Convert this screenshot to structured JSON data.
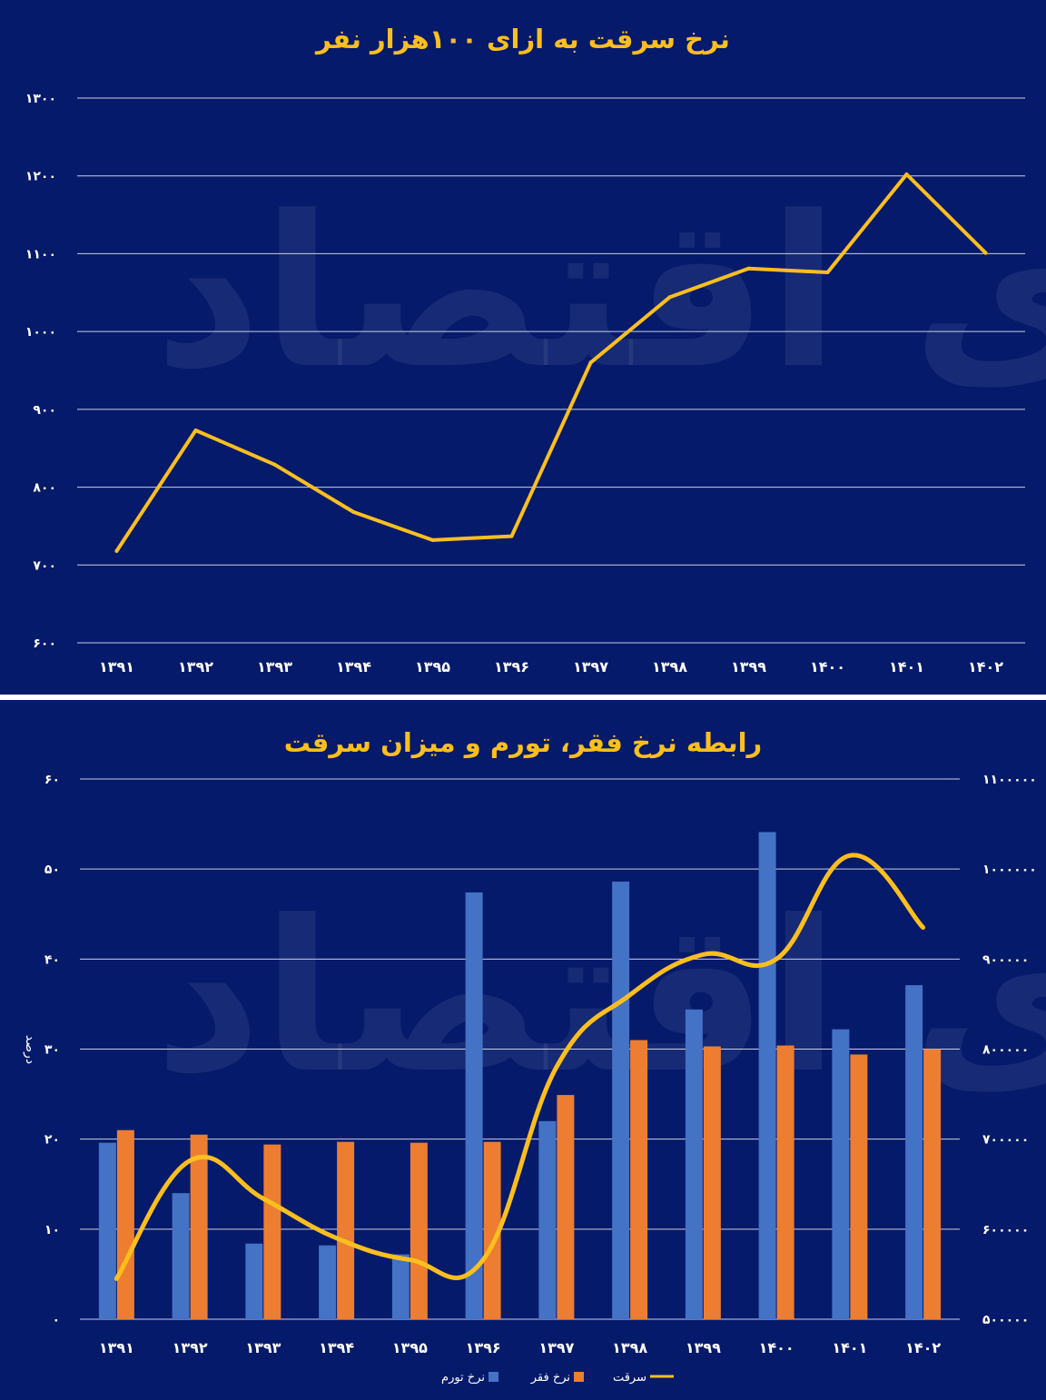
{
  "colors": {
    "background": "#061a6b",
    "grid": "#c9cfe6",
    "text": "#ffffff",
    "accent": "#fdbf1e",
    "inflation_bar": "#4472c4",
    "poverty_bar": "#ed7d31",
    "theft_line": "#fdbf1e"
  },
  "watermark": "دنیای اقتصاد",
  "chart_data": [
    {
      "type": "line",
      "title": "نرخ سرقت به ازای ۱۰۰هزار نفر",
      "categories": [
        "۱۳۹۱",
        "۱۳۹۲",
        "۱۳۹۳",
        "۱۳۹۴",
        "۱۳۹۵",
        "۱۳۹۶",
        "۱۳۹۷",
        "۱۳۹۸",
        "۱۳۹۹",
        "۱۴۰۰",
        "۱۴۰۱",
        "۱۴۰۲"
      ],
      "values": [
        718,
        873,
        829,
        768,
        732,
        737,
        960,
        1044,
        1081,
        1076,
        1202,
        1101
      ],
      "ylim": [
        600,
        1300
      ],
      "yticks": [
        {
          "value": 600,
          "label": "۶۰۰"
        },
        {
          "value": 700,
          "label": "۷۰۰"
        },
        {
          "value": 800,
          "label": "۸۰۰"
        },
        {
          "value": 900,
          "label": "۹۰۰"
        },
        {
          "value": 1000,
          "label": "۱۰۰۰"
        },
        {
          "value": 1100,
          "label": "۱۱۰۰"
        },
        {
          "value": 1200,
          "label": "۱۲۰۰"
        },
        {
          "value": 1300,
          "label": "۱۳۰۰"
        }
      ],
      "grid": true
    },
    {
      "type": "bar",
      "title": "رابطه نرخ فقر، تورم و میزان سرقت",
      "categories": [
        "۱۳۹۱",
        "۱۳۹۲",
        "۱۳۹۳",
        "۱۳۹۴",
        "۱۳۹۵",
        "۱۳۹۶",
        "۱۳۹۷",
        "۱۳۹۸",
        "۱۳۹۹",
        "۱۴۰۰",
        "۱۴۰۱",
        "۱۴۰۲"
      ],
      "ylabel": "درصد",
      "ylim": [
        0,
        60
      ],
      "yticks": [
        {
          "value": 0,
          "label": "۰"
        },
        {
          "value": 10,
          "label": "۱۰"
        },
        {
          "value": 20,
          "label": "۲۰"
        },
        {
          "value": 30,
          "label": "۳۰"
        },
        {
          "value": 40,
          "label": "۴۰"
        },
        {
          "value": 50,
          "label": "۵۰"
        },
        {
          "value": 60,
          "label": "۶۰"
        }
      ],
      "y2lim": [
        500000,
        1100000
      ],
      "y2ticks": [
        {
          "value": 500000,
          "label": "۵۰۰۰۰۰"
        },
        {
          "value": 600000,
          "label": "۶۰۰۰۰۰"
        },
        {
          "value": 700000,
          "label": "۷۰۰۰۰۰"
        },
        {
          "value": 800000,
          "label": "۸۰۰۰۰۰"
        },
        {
          "value": 900000,
          "label": "۹۰۰۰۰۰"
        },
        {
          "value": 1000000,
          "label": "۱۰۰۰۰۰۰"
        },
        {
          "value": 1100000,
          "label": "۱۱۰۰۰۰۰"
        }
      ],
      "series": [
        {
          "name": "نرخ تورم",
          "kind": "bar",
          "axis": "left",
          "values": [
            19.6,
            14.0,
            8.4,
            8.2,
            7.2,
            47.4,
            22.0,
            48.6,
            34.4,
            54.1,
            32.2,
            37.1
          ]
        },
        {
          "name": "نرخ فقر",
          "kind": "bar",
          "axis": "left",
          "values": [
            21.0,
            20.5,
            19.4,
            19.7,
            19.6,
            19.7,
            24.9,
            31.0,
            30.3,
            30.4,
            29.4,
            30.0
          ]
        },
        {
          "name": "سرقت",
          "kind": "line",
          "axis": "right",
          "values": [
            545000,
            676000,
            634000,
            590000,
            566000,
            566000,
            780000,
            860000,
            905000,
            900000,
            1015000,
            935000
          ]
        }
      ],
      "legend": "bottom",
      "grid": true
    }
  ]
}
